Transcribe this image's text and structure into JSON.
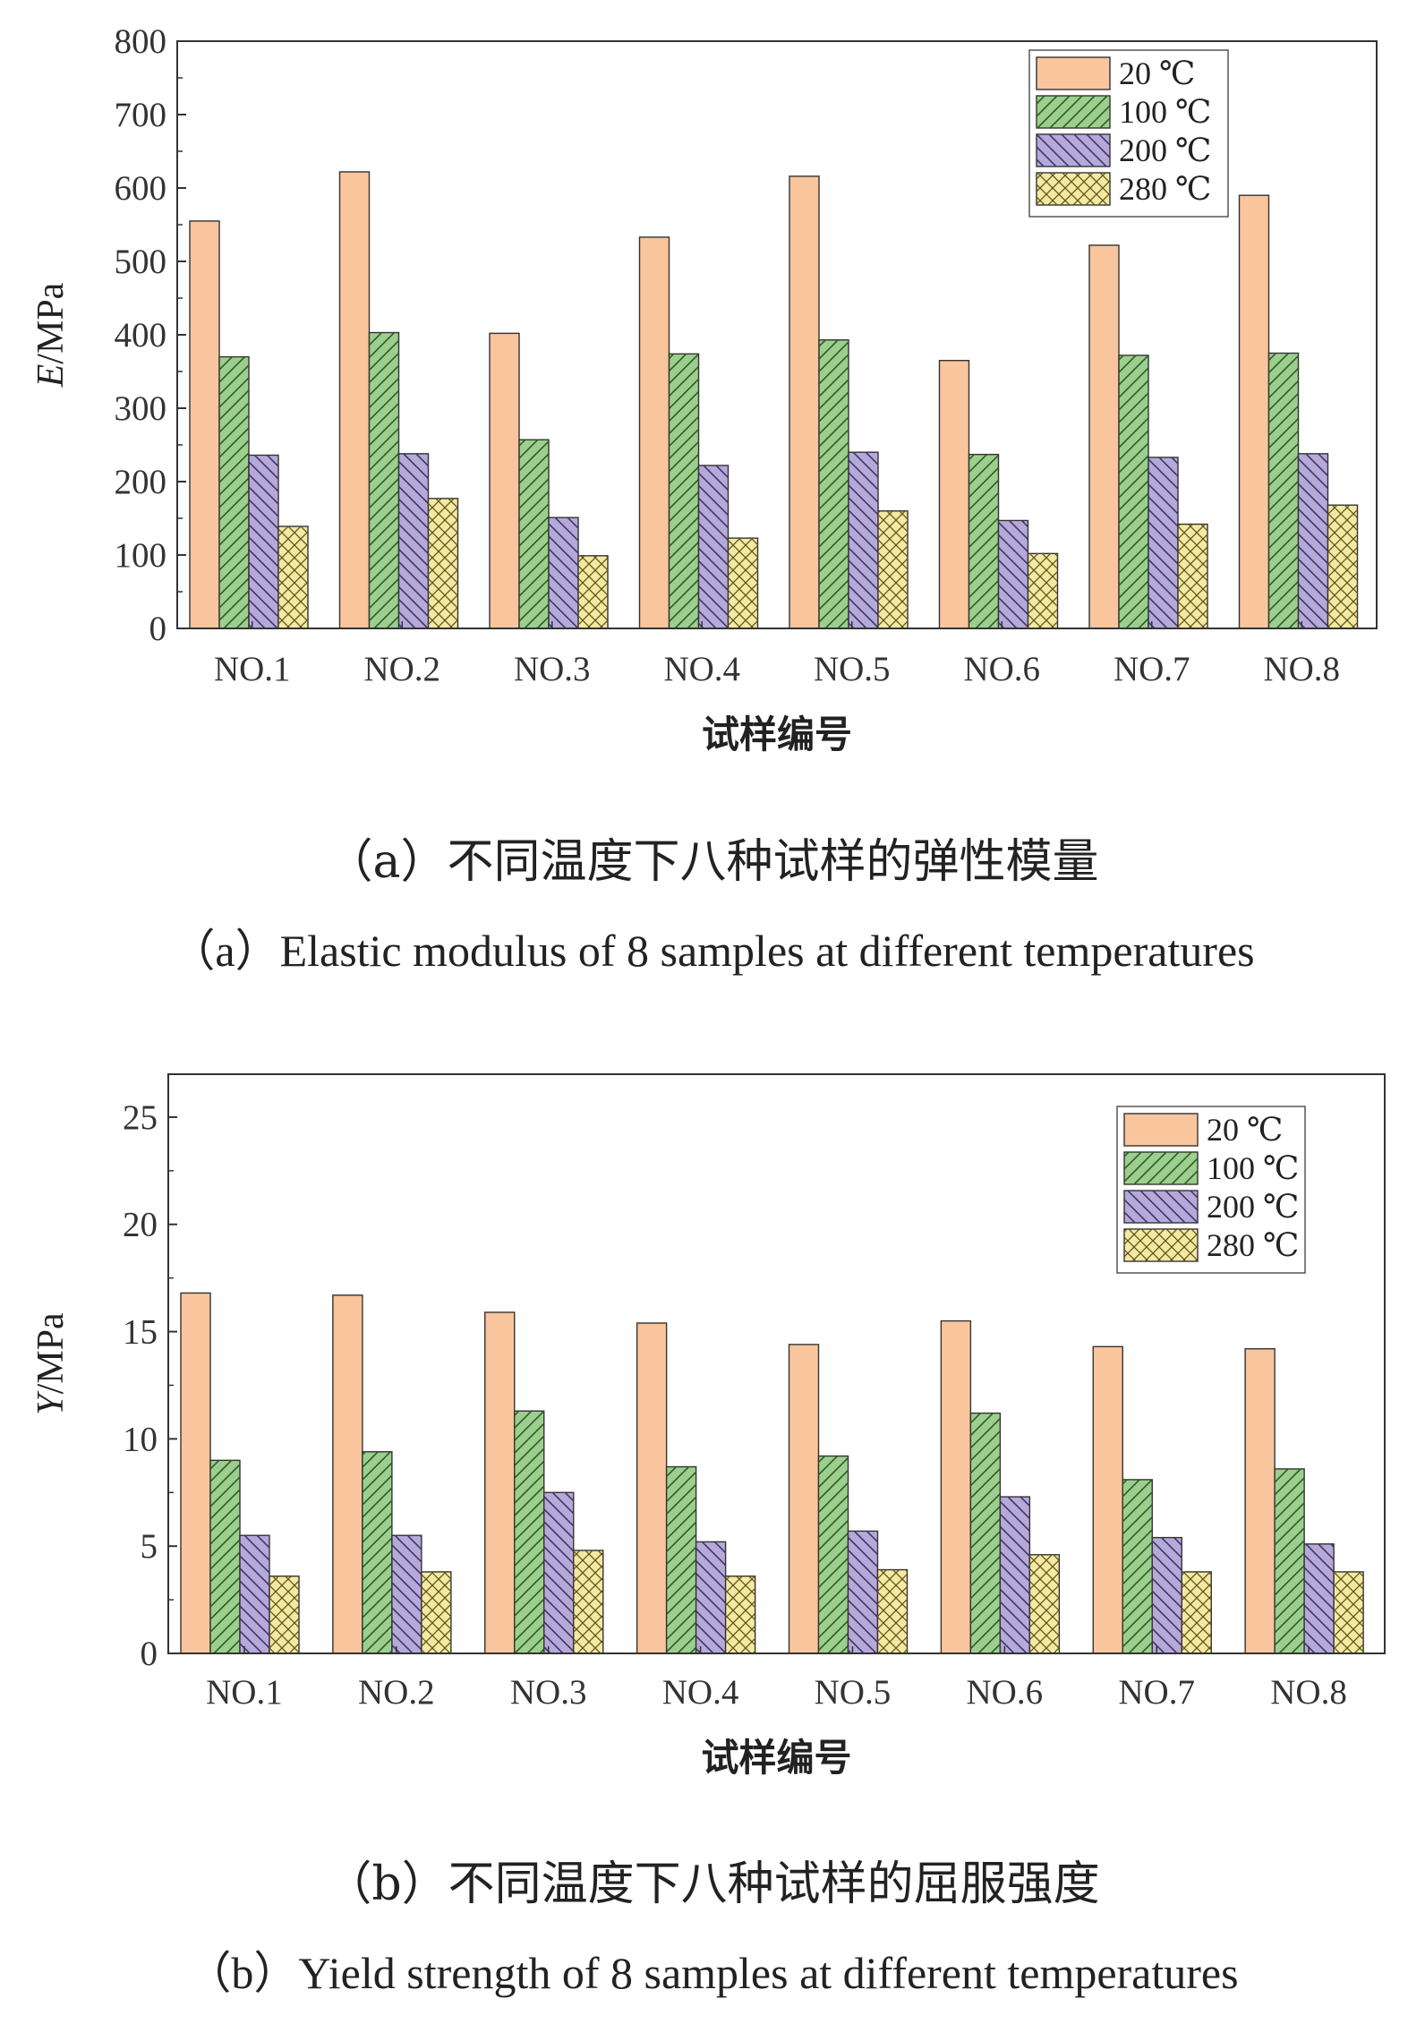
{
  "chart_data": [
    {
      "type": "bar",
      "id": "a",
      "ylabel_italic": "E",
      "ylabel_unit": "/MPa",
      "xlabel": "试样编号",
      "categories": [
        "NO.1",
        "NO.2",
        "NO.3",
        "NO.4",
        "NO.5",
        "NO.6",
        "NO.7",
        "NO.8"
      ],
      "ylim": [
        0,
        800
      ],
      "yticks": [
        0,
        100,
        200,
        300,
        400,
        500,
        600,
        700,
        800
      ],
      "legend_position": "top-right",
      "series": [
        {
          "name": "20 ℃",
          "color": "#f9c59c",
          "pattern": "solid",
          "values": [
            555,
            622,
            402,
            533,
            616,
            365,
            522,
            590
          ]
        },
        {
          "name": "100 ℃",
          "color": "#9ccf8e",
          "pattern": "diag-right",
          "values": [
            370,
            403,
            257,
            374,
            393,
            237,
            372,
            375
          ]
        },
        {
          "name": "200 ℃",
          "color": "#b5a9d9",
          "pattern": "diag-left",
          "values": [
            236,
            238,
            151,
            222,
            240,
            147,
            233,
            238
          ]
        },
        {
          "name": "280 ℃",
          "color": "#f5e9a0",
          "pattern": "crosshatch",
          "values": [
            139,
            177,
            99,
            123,
            160,
            102,
            142,
            168
          ]
        }
      ],
      "caption_cn": "（a）不同温度下八种试样的弹性模量",
      "caption_en": "（a）Elastic modulus of 8 samples at different temperatures"
    },
    {
      "type": "bar",
      "id": "b",
      "ylabel_italic": "Y",
      "ylabel_unit": "/MPa",
      "xlabel": "试样编号",
      "categories": [
        "NO.1",
        "NO.2",
        "NO.3",
        "NO.4",
        "NO.5",
        "NO.6",
        "NO.7",
        "NO.8"
      ],
      "ylim": [
        0,
        27
      ],
      "yticks": [
        0,
        5,
        10,
        15,
        20,
        25
      ],
      "legend_position": "top-right",
      "series": [
        {
          "name": "20 ℃",
          "color": "#f9c59c",
          "pattern": "solid",
          "values": [
            16.8,
            16.7,
            15.9,
            15.4,
            14.4,
            15.5,
            14.3,
            14.2
          ]
        },
        {
          "name": "100 ℃",
          "color": "#9ccf8e",
          "pattern": "diag-right",
          "values": [
            9.0,
            9.4,
            11.3,
            8.7,
            9.2,
            11.2,
            8.1,
            8.6
          ]
        },
        {
          "name": "200 ℃",
          "color": "#b5a9d9",
          "pattern": "diag-left",
          "values": [
            5.5,
            5.5,
            7.5,
            5.2,
            5.7,
            7.3,
            5.4,
            5.1
          ]
        },
        {
          "name": "280 ℃",
          "color": "#f5e9a0",
          "pattern": "crosshatch",
          "values": [
            3.6,
            3.8,
            4.8,
            3.6,
            3.9,
            4.6,
            3.8,
            3.8
          ]
        }
      ],
      "caption_cn": "（b）不同温度下八种试样的屈服强度",
      "caption_en": "（b）Yield strength of 8 samples at different temperatures"
    }
  ]
}
